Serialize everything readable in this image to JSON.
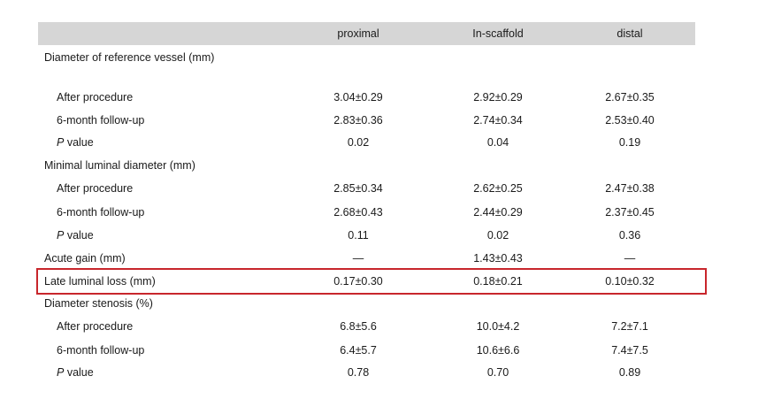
{
  "table": {
    "columns": [
      "",
      "proximal",
      "In-scaffold",
      "distal"
    ],
    "rows": [
      {
        "label": "Diameter of reference vessel (mm)",
        "indent": false,
        "values": [
          "",
          "",
          ""
        ]
      },
      {
        "label": "After procedure",
        "indent": true,
        "values": [
          "3.04±0.29",
          "2.92±0.29",
          "2.67±0.35"
        ]
      },
      {
        "label": "6-month follow-up",
        "indent": true,
        "values": [
          "2.83±0.36",
          "2.74±0.34",
          "2.53±0.40"
        ]
      },
      {
        "label": "P value",
        "indent": true,
        "italic_p": true,
        "values": [
          "0.02",
          "0.04",
          "0.19"
        ]
      },
      {
        "label": "Minimal luminal diameter (mm)",
        "indent": false,
        "values": [
          "",
          "",
          ""
        ]
      },
      {
        "label": "After procedure",
        "indent": true,
        "values": [
          "2.85±0.34",
          "2.62±0.25",
          "2.47±0.38"
        ]
      },
      {
        "label": "6-month follow-up",
        "indent": true,
        "values": [
          "2.68±0.43",
          "2.44±0.29",
          "2.37±0.45"
        ]
      },
      {
        "label": "P value",
        "indent": true,
        "italic_p": true,
        "values": [
          "0.11",
          "0.02",
          "0.36"
        ]
      },
      {
        "label": "Acute gain (mm)",
        "indent": false,
        "values": [
          "—",
          "1.43±0.43",
          "—"
        ]
      },
      {
        "label": "Late luminal loss (mm)",
        "indent": false,
        "highlighted": true,
        "values": [
          "0.17±0.30",
          "0.18±0.21",
          "0.10±0.32"
        ]
      },
      {
        "label": "Diameter stenosis (%)",
        "indent": false,
        "values": [
          "",
          "",
          ""
        ]
      },
      {
        "label": "After procedure",
        "indent": true,
        "values": [
          "6.8±5.6",
          "10.0±4.2",
          "7.2±7.1"
        ]
      },
      {
        "label": "6-month follow-up",
        "indent": true,
        "values": [
          "6.4±5.7",
          "10.6±6.6",
          "7.4±7.5"
        ]
      },
      {
        "label": "P value",
        "indent": true,
        "italic_p": true,
        "values": [
          "0.78",
          "0.70",
          "0.89"
        ]
      }
    ]
  },
  "colors": {
    "header_band": "#d6d6d6",
    "highlight_border": "#c8262c"
  }
}
